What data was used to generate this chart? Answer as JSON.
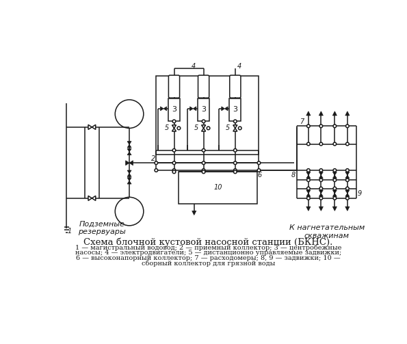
{
  "title": "Схема блочной кустовой насосной станции (БКНС).",
  "cap1": "1 — магистральный водовод; 2 — приемный коллектор; 3 — центробежные",
  "cap2": "насосы; 4 — электродвигатели; 5 — дистанционно управляемые задвижки;",
  "cap3": "6 — высоконапорный коллектор; 7 — расходомеры; 8, 9 — задвижки; 10 —",
  "cap4": "сборный коллектор для грязной воды",
  "underground": "Подземные\nрезервуары",
  "to_wells": "К нагнетательным\nскважинам",
  "bg": "#ffffff",
  "fg": "#1a1a1a",
  "lw": 1.1
}
